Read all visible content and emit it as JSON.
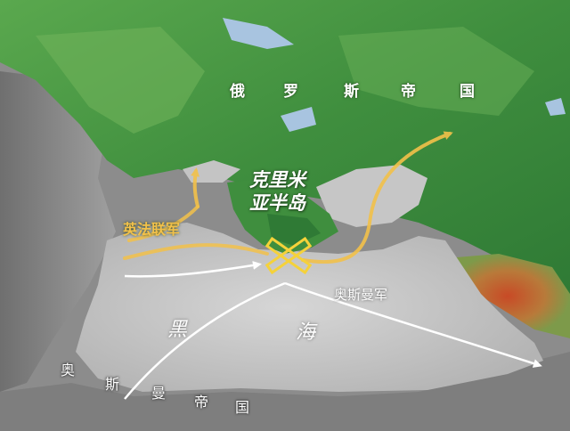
{
  "labels": {
    "russian_empire": [
      "俄",
      "罗",
      "斯",
      "帝",
      "国"
    ],
    "crimea": [
      "克里米",
      "亚半岛"
    ],
    "allied_army": "英法联军",
    "ottoman_army": "奥斯曼军",
    "black_sea": [
      "黑",
      "海"
    ],
    "ottoman_empire": [
      "奥",
      "斯",
      "曼",
      "帝",
      "国"
    ]
  },
  "colors": {
    "allied_arrow": "#f2c14a",
    "ottoman_arrow": "#ffffff",
    "battle_marker": "#f5d23a",
    "sea": "#c9c9c9",
    "land_green": "#4f9a48",
    "land_grey": "#8e8e8e"
  },
  "icons": {
    "battle": "crossed-swords-icon"
  }
}
